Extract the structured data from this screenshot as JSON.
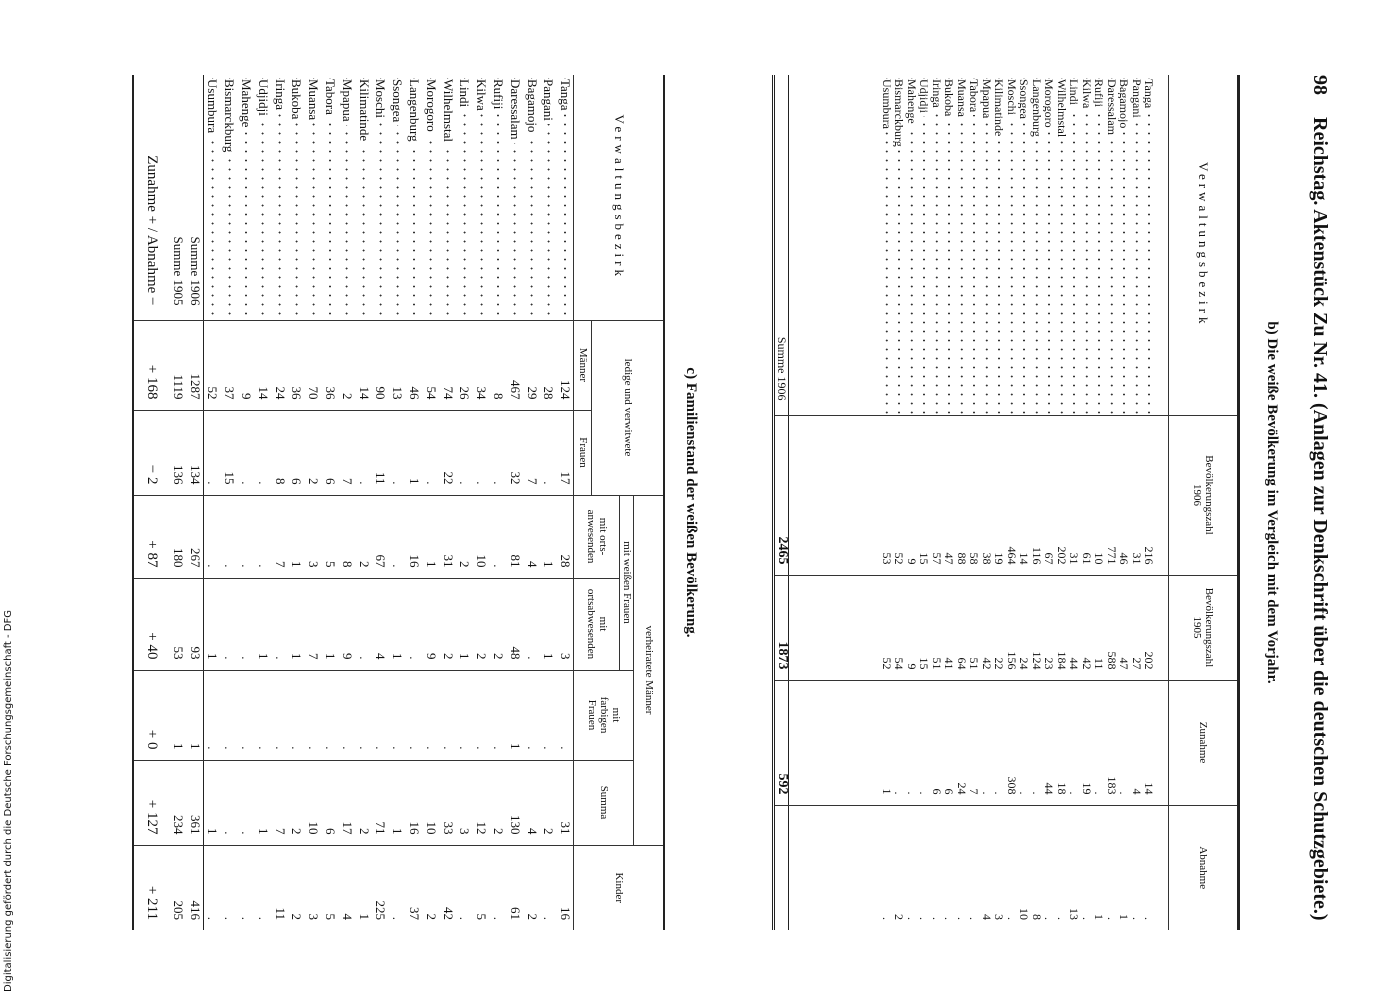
{
  "header": {
    "page_number": "98",
    "title": "Reichstag. Aktenstück Zu Nr. 41. (Anlagen zur Denkschrift über die deutschen Schutzgebiete.)"
  },
  "table_b": {
    "title": "b) Die weiße Bevölkerung im Vergleich mit dem Vorjahr.",
    "columns": [
      "Verwaltungsbezirk",
      "Bevölkerungszahl\n1906",
      "Bevölkerungszahl\n1905",
      "Zunahme",
      "Abnahme"
    ],
    "rows": [
      [
        "Tanga",
        216,
        202,
        14,
        "."
      ],
      [
        "Pangani",
        31,
        27,
        4,
        "."
      ],
      [
        "Bagamojo",
        46,
        47,
        ".",
        1
      ],
      [
        "Daressalam",
        771,
        588,
        183,
        "."
      ],
      [
        "Rufiji",
        10,
        11,
        ".",
        1
      ],
      [
        "Kilwa",
        61,
        42,
        19,
        "."
      ],
      [
        "Lindi",
        31,
        44,
        ".",
        13
      ],
      [
        "Wilhelmstal",
        202,
        184,
        18,
        "."
      ],
      [
        "Morogoro",
        67,
        23,
        44,
        "."
      ],
      [
        "Langenburg",
        116,
        124,
        ".",
        8
      ],
      [
        "Ssongea",
        14,
        24,
        ".",
        10
      ],
      [
        "Moschi",
        464,
        156,
        308,
        "."
      ],
      [
        "Kilimatinde",
        19,
        22,
        ".",
        3
      ],
      [
        "Mpapua",
        38,
        42,
        ".",
        4
      ],
      [
        "Tabora",
        58,
        51,
        7,
        "."
      ],
      [
        "Muansa",
        88,
        64,
        24,
        "."
      ],
      [
        "Bukoba",
        47,
        41,
        6,
        "."
      ],
      [
        "Iringa",
        57,
        51,
        6,
        "."
      ],
      [
        "Udjidji",
        15,
        15,
        ".",
        "."
      ],
      [
        "Mahenge",
        9,
        9,
        ".",
        "."
      ],
      [
        "Bismarckburg",
        52,
        54,
        ".",
        2
      ],
      [
        "Usumbura",
        53,
        52,
        1,
        "."
      ]
    ],
    "total_label": "Summe 1906",
    "totals": [
      2465,
      1873,
      592
    ]
  },
  "table_c": {
    "title": "c) Familienstand der weißen Bevölkerung.",
    "header": {
      "district": "Verwaltungsbezirk",
      "single": "ledige und verwitwete",
      "men": "Männer",
      "women": "Frauen",
      "married": "verheiratete Männer",
      "white_wives": "mit weißen Frauen",
      "present": "mit orts-\nanwesenden",
      "absent": "mit\nortsabwesenden",
      "colored_wives": "mit\nfarbigen\nFrauen",
      "sum": "Summa",
      "children": "Kinder"
    },
    "rows": [
      [
        "Tanga",
        124,
        17,
        28,
        3,
        ".",
        31,
        16
      ],
      [
        "Pangani",
        28,
        ".",
        1,
        1,
        ".",
        2,
        "."
      ],
      [
        "Bagamojo",
        29,
        7,
        4,
        ".",
        ".",
        4,
        2
      ],
      [
        "Daressalam",
        467,
        32,
        81,
        48,
        1,
        130,
        61
      ],
      [
        "Rufiji",
        8,
        ".",
        ".",
        2,
        ".",
        2,
        "."
      ],
      [
        "Kilwa",
        34,
        ".",
        10,
        2,
        ".",
        12,
        5
      ],
      [
        "Lindi",
        26,
        ".",
        2,
        1,
        ".",
        3,
        "."
      ],
      [
        "Wilhelmstal",
        74,
        22,
        31,
        2,
        ".",
        33,
        42
      ],
      [
        "Morogoro",
        54,
        ".",
        1,
        9,
        ".",
        10,
        2
      ],
      [
        "Langenburg",
        46,
        1,
        16,
        ".",
        ".",
        16,
        37
      ],
      [
        "Ssongea",
        13,
        ".",
        ".",
        1,
        ".",
        1,
        "."
      ],
      [
        "Moschi",
        90,
        11,
        67,
        4,
        ".",
        71,
        225
      ],
      [
        "Kilimatinde",
        14,
        ".",
        2,
        ".",
        ".",
        2,
        1
      ],
      [
        "Mpapua",
        2,
        7,
        8,
        9,
        ".",
        17,
        4
      ],
      [
        "Tabora",
        36,
        6,
        5,
        1,
        ".",
        6,
        5
      ],
      [
        "Muansa",
        70,
        2,
        3,
        7,
        ".",
        10,
        3
      ],
      [
        "Bukoba",
        36,
        6,
        1,
        1,
        ".",
        2,
        2
      ],
      [
        "Iringa",
        24,
        8,
        7,
        ".",
        ".",
        7,
        11
      ],
      [
        "Udjidji",
        14,
        ".",
        ".",
        1,
        ".",
        1,
        "."
      ],
      [
        "Mahenge",
        9,
        ".",
        ".",
        ".",
        ".",
        ".",
        "."
      ],
      [
        "Bismarckburg",
        37,
        15,
        ".",
        ".",
        ".",
        ".",
        "."
      ],
      [
        "Usumbura",
        52,
        ".",
        ".",
        1,
        ".",
        1,
        "."
      ]
    ],
    "summary": [
      [
        "Summe 1906",
        1287,
        134,
        267,
        93,
        1,
        361,
        416
      ],
      [
        "Summe 1905",
        1119,
        136,
        180,
        53,
        1,
        234,
        205
      ],
      [
        "Zunahme + / Abnahme −",
        "+ 168",
        "− 2",
        "+ 87",
        "+ 40",
        "+ 0",
        "+ 127",
        "+ 211"
      ]
    ]
  },
  "footer": "Digitalisierung gefördert durch die Deutsche Forschungsgemeinschaft - DFG"
}
